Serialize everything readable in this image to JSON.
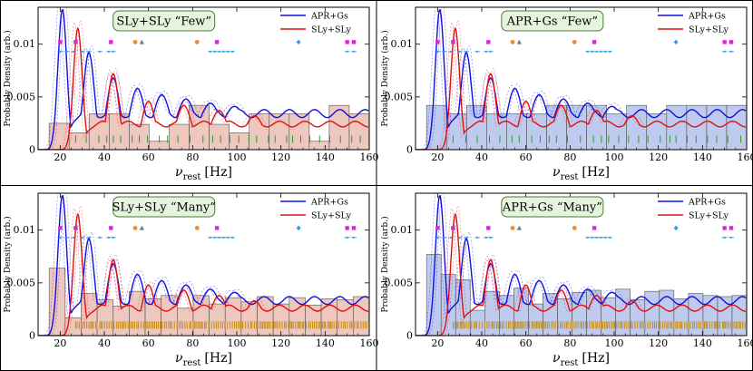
{
  "figure": {
    "colors": {
      "apr": "#1010e0",
      "sly": "#e01010",
      "hist_sly": "#e8b4a8",
      "hist_apr": "#a8b8e8",
      "hist_edge": "#555555",
      "title_box": "#e6f4dd",
      "title_border": "#4a7a3a",
      "rug_green": "#2a9a2a",
      "rug_gold": "#c8901c",
      "marker_magenta": "#e020e0",
      "marker_orange": "#f08a30",
      "marker_gray": "#777777",
      "marker_cyan": "#20a0e8"
    }
  },
  "chart_data": [
    {
      "type": "histogram+line",
      "title": "SLy+SLy “Few”",
      "xlabel": "ν",
      "xlabel_sub": "rest",
      "xlabel_unit": "[Hz]",
      "ylabel": "Probably Density (arb.)",
      "xlim": [
        10,
        160
      ],
      "ylim": [
        0,
        0.0135
      ],
      "xticks": [
        "20",
        "40",
        "60",
        "80",
        "100",
        "120",
        "140",
        "160"
      ],
      "yticks": [
        "0",
        "0.005",
        "0.01"
      ],
      "hist_color": "sly",
      "hist_values": [
        0.0025,
        0.0016,
        0.0034,
        0.0034,
        0.0024,
        0.0008,
        0.0024,
        0.0042,
        0.0024,
        0.0016,
        0.0034,
        0.0034,
        0.0034,
        0.0008,
        0.0042,
        0.0034
      ],
      "rug": "sparse",
      "series": [
        {
          "name": "APR+Gs",
          "color": "apr",
          "peaks": [
            21,
            33,
            44,
            55,
            66,
            77,
            88,
            99
          ],
          "amps": [
            0.0133,
            0.0092,
            0.0068,
            0.0058,
            0.0052,
            0.0048,
            0.0044,
            0.0041
          ],
          "baseline": 0.0038
        },
        {
          "name": "SLy+SLy",
          "color": "sly",
          "peaks": [
            28,
            44,
            60,
            76,
            92,
            108
          ],
          "amps": [
            0.0115,
            0.0072,
            0.0046,
            0.0042,
            0.0037,
            0.0032
          ],
          "baseline": 0.0027
        }
      ]
    },
    {
      "type": "histogram+line",
      "title": "APR+Gs “Few”",
      "xlabel": "ν",
      "xlabel_sub": "rest",
      "xlabel_unit": "[Hz]",
      "ylabel": "Probably Density (arb.)",
      "xlim": [
        10,
        160
      ],
      "ylim": [
        0,
        0.0135
      ],
      "xticks": [
        "20",
        "40",
        "60",
        "80",
        "100",
        "120",
        "140",
        "160"
      ],
      "yticks": [
        "0",
        "0.005",
        "0.01"
      ],
      "hist_color": "apr",
      "hist_values": [
        0.0042,
        0.0034,
        0.0042,
        0.0034,
        0.0034,
        0.0034,
        0.0042,
        0.0042,
        0.0042,
        0.0034,
        0.0042,
        0.0034,
        0.0042,
        0.0042,
        0.0042,
        0.0042
      ],
      "rug": "sparse",
      "series": [
        {
          "name": "APR+Gs",
          "color": "apr",
          "peaks": [
            21,
            33,
            44,
            55,
            66,
            77,
            88,
            99
          ],
          "amps": [
            0.0133,
            0.0092,
            0.0068,
            0.0058,
            0.0052,
            0.0048,
            0.0044,
            0.0041
          ],
          "baseline": 0.0038
        },
        {
          "name": "SLy+SLy",
          "color": "sly",
          "peaks": [
            28,
            44,
            60,
            76,
            92,
            108
          ],
          "amps": [
            0.0115,
            0.0072,
            0.0046,
            0.0042,
            0.0037,
            0.0032
          ],
          "baseline": 0.0027
        }
      ]
    },
    {
      "type": "histogram+line",
      "title": "SLy+SLy “Many”",
      "xlabel": "ν",
      "xlabel_sub": "rest",
      "xlabel_unit": "[Hz]",
      "ylabel": "Probably Density (arb.)",
      "xlim": [
        10,
        160
      ],
      "ylim": [
        0,
        0.0135
      ],
      "xticks": [
        "20",
        "40",
        "60",
        "80",
        "100",
        "120",
        "140",
        "160"
      ],
      "yticks": [
        "0",
        "0.005",
        "0.01"
      ],
      "hist_color": "sly",
      "hist_values": [
        0.0064,
        0.0017,
        0.004,
        0.0034,
        0.0028,
        0.0042,
        0.0035,
        0.0038,
        0.0026,
        0.0038,
        0.003,
        0.0036,
        0.0032,
        0.0037,
        0.003,
        0.0036,
        0.0029,
        0.0035,
        0.0034,
        0.0037
      ],
      "rug": "dense",
      "series": [
        {
          "name": "APR+Gs",
          "color": "apr",
          "peaks": [
            21,
            33,
            44,
            55,
            66,
            77,
            88,
            99
          ],
          "amps": [
            0.0133,
            0.0092,
            0.0068,
            0.0058,
            0.0052,
            0.0048,
            0.0044,
            0.0041
          ],
          "baseline": 0.0037
        },
        {
          "name": "SLy+SLy",
          "color": "sly",
          "peaks": [
            28,
            44,
            60,
            76,
            92,
            108
          ],
          "amps": [
            0.0115,
            0.0072,
            0.0048,
            0.0043,
            0.0038,
            0.0033
          ],
          "baseline": 0.0029
        }
      ]
    },
    {
      "type": "histogram+line",
      "title": "APR+Gs “Many”",
      "xlabel": "ν",
      "xlabel_sub": "rest",
      "xlabel_unit": "[Hz]",
      "ylabel": "Probably Density (arb.)",
      "xlim": [
        10,
        160
      ],
      "ylim": [
        0,
        0.0135
      ],
      "xticks": [
        "20",
        "40",
        "60",
        "80",
        "100",
        "120",
        "140",
        "160"
      ],
      "yticks": [
        "0",
        "0.005",
        "0.01"
      ],
      "hist_color": "apr",
      "hist_values": [
        0.0077,
        0.0058,
        0.0053,
        0.0024,
        0.0042,
        0.0038,
        0.0045,
        0.003,
        0.004,
        0.0035,
        0.0041,
        0.0043,
        0.0036,
        0.0044,
        0.0034,
        0.0042,
        0.0043,
        0.0035,
        0.004,
        0.0038,
        0.0037,
        0.0038
      ],
      "rug": "dense",
      "series": [
        {
          "name": "APR+Gs",
          "color": "apr",
          "peaks": [
            21,
            33,
            44,
            55,
            66,
            77,
            88,
            99
          ],
          "amps": [
            0.0133,
            0.0092,
            0.0068,
            0.0058,
            0.0052,
            0.0048,
            0.0044,
            0.0041
          ],
          "baseline": 0.0037
        },
        {
          "name": "SLy+SLy",
          "color": "sly",
          "peaks": [
            28,
            44,
            60,
            76,
            92,
            108
          ],
          "amps": [
            0.0115,
            0.0072,
            0.0048,
            0.0043,
            0.0038,
            0.0033
          ],
          "baseline": 0.0029
        }
      ]
    }
  ]
}
